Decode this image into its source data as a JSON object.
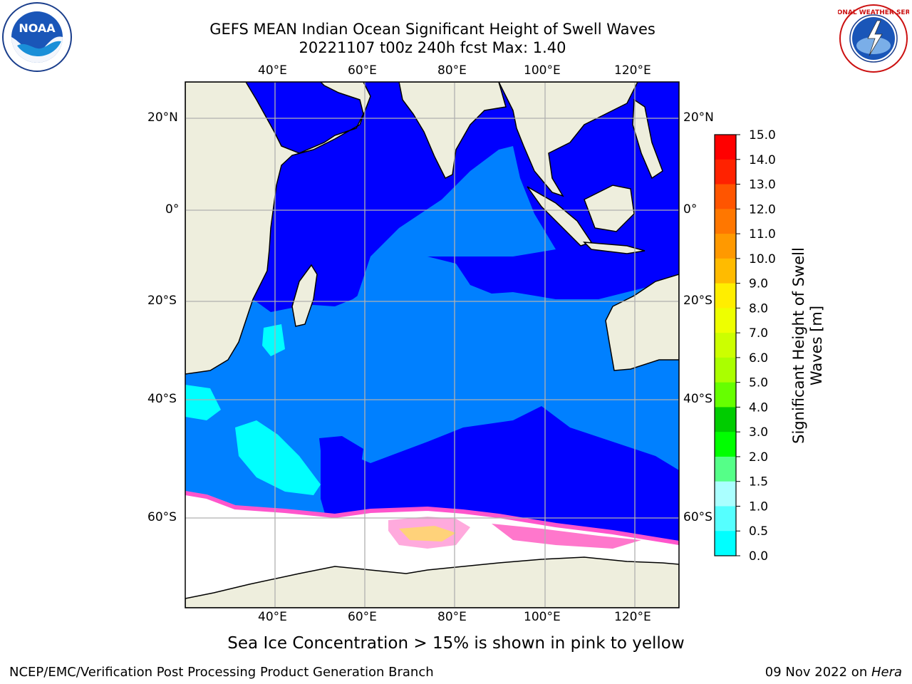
{
  "header": {
    "title_line1": "GEFS MEAN Indian Ocean Significant Height of Swell Waves",
    "title_line2": "20221107 t00z 240h fcst   Max: 1.40"
  },
  "logos": {
    "noaa_text": "NOAA",
    "noaa_ring": "NATIONAL OCEANIC AND ATMOSPHERIC ADMINISTRATION · U.S. DEPARTMENT OF COMMERCE",
    "nws_ring": "NATIONAL WEATHER SERVICE"
  },
  "map": {
    "lon_ticks": [
      "40°E",
      "60°E",
      "80°E",
      "100°E",
      "120°E"
    ],
    "lat_ticks": [
      "20°N",
      "0°",
      "20°S",
      "40°S",
      "60°S"
    ],
    "lon_values": [
      40,
      60,
      80,
      100,
      120
    ],
    "lat_values": [
      20,
      0,
      -20,
      -40,
      -60
    ],
    "extent": {
      "lon_min": 20,
      "lon_max": 130,
      "lat_min": -76,
      "lat_max": 28
    },
    "colors": {
      "land": "#eeeedd",
      "swell_0_0.5": "#0000ff",
      "swell_0.5_1.0": "#0080ff",
      "swell_1.0_1.5": "#00ffff",
      "ice_edge": "#ff66cc",
      "ice_core": "#ff44aa",
      "ice_high": "#ffcc66",
      "grid": "#b0b0b0"
    }
  },
  "colorbar": {
    "label_line1": "Significant Height of Swell",
    "label_line2": "Waves [m]",
    "ticks": [
      "15.0",
      "14.0",
      "13.0",
      "12.0",
      "11.0",
      "10.0",
      "9.0",
      "8.0",
      "7.0",
      "6.0",
      "5.0",
      "4.0",
      "3.0",
      "2.0",
      "1.5",
      "1.0",
      "0.5",
      "0.0"
    ],
    "colors": [
      "#ff0000",
      "#ff2200",
      "#ff5500",
      "#ff7700",
      "#ff9900",
      "#ffbb00",
      "#ffee00",
      "#eeff00",
      "#ccff00",
      "#aaff00",
      "#66ff00",
      "#00cc00",
      "#00ff00",
      "#55ff88",
      "#aaffff",
      "#55ffff",
      "#00ffff",
      "#0080ff",
      "#0000ff"
    ]
  },
  "caption": "Sea Ice Concentration > 15% is shown in pink to yellow",
  "footer": {
    "left": "NCEP/EMC/Verification Post Processing Product Generation Branch",
    "right_date": "09 Nov 2022 on ",
    "right_machine": "Hera"
  }
}
